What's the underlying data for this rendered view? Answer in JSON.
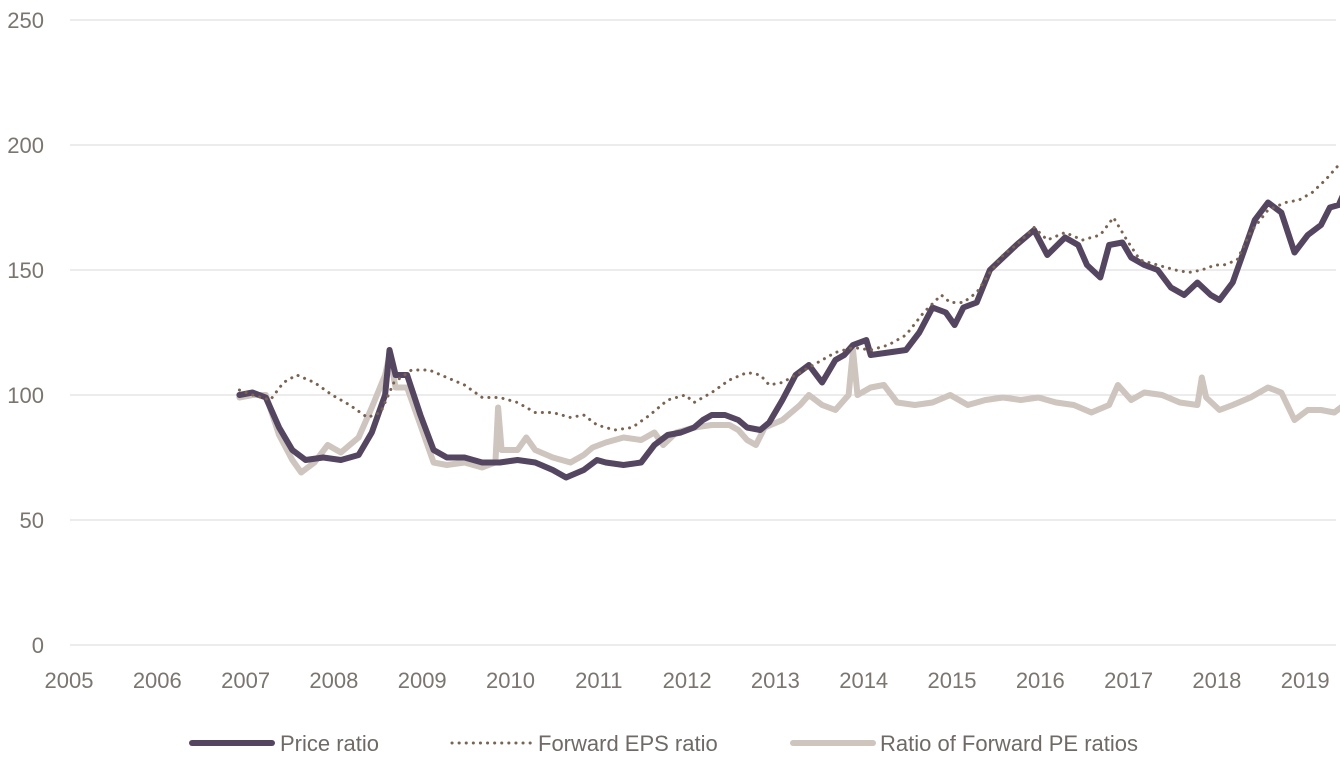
{
  "chart_data": {
    "type": "line",
    "title": "",
    "xlabel": "",
    "ylabel": "",
    "xlim": [
      2005,
      2019.4
    ],
    "ylim": [
      0,
      250
    ],
    "x_ticks": [
      "2005",
      "2006",
      "2007",
      "2008",
      "2009",
      "2010",
      "2011",
      "2012",
      "2013",
      "2014",
      "2015",
      "2016",
      "2017",
      "2018",
      "2019"
    ],
    "y_ticks": [
      "0",
      "50",
      "100",
      "150",
      "200",
      "250"
    ],
    "grid": "horizontal",
    "legend_position": "bottom",
    "series": [
      {
        "name": "Price ratio",
        "color": "#544660",
        "style": "solid-thick",
        "points": [
          [
            2006.85,
            100
          ],
          [
            2007.0,
            101
          ],
          [
            2007.15,
            99
          ],
          [
            2007.3,
            87
          ],
          [
            2007.45,
            78
          ],
          [
            2007.6,
            74
          ],
          [
            2007.8,
            75
          ],
          [
            2008.0,
            74
          ],
          [
            2008.2,
            76
          ],
          [
            2008.35,
            85
          ],
          [
            2008.5,
            100
          ],
          [
            2008.55,
            118
          ],
          [
            2008.62,
            108
          ],
          [
            2008.75,
            108
          ],
          [
            2008.9,
            92
          ],
          [
            2009.05,
            78
          ],
          [
            2009.2,
            75
          ],
          [
            2009.4,
            75
          ],
          [
            2009.6,
            73
          ],
          [
            2009.8,
            73
          ],
          [
            2010.0,
            74
          ],
          [
            2010.2,
            73
          ],
          [
            2010.4,
            70
          ],
          [
            2010.55,
            67
          ],
          [
            2010.75,
            70
          ],
          [
            2010.9,
            74
          ],
          [
            2011.0,
            73
          ],
          [
            2011.2,
            72
          ],
          [
            2011.4,
            73
          ],
          [
            2011.55,
            80
          ],
          [
            2011.7,
            84
          ],
          [
            2011.85,
            85
          ],
          [
            2012.0,
            87
          ],
          [
            2012.1,
            90
          ],
          [
            2012.2,
            92
          ],
          [
            2012.35,
            92
          ],
          [
            2012.5,
            90
          ],
          [
            2012.6,
            87
          ],
          [
            2012.75,
            86
          ],
          [
            2012.85,
            89
          ],
          [
            2013.0,
            98
          ],
          [
            2013.15,
            108
          ],
          [
            2013.3,
            112
          ],
          [
            2013.45,
            105
          ],
          [
            2013.6,
            114
          ],
          [
            2013.7,
            116
          ],
          [
            2013.8,
            120
          ],
          [
            2013.95,
            122
          ],
          [
            2014.0,
            116
          ],
          [
            2014.2,
            117
          ],
          [
            2014.4,
            118
          ],
          [
            2014.55,
            125
          ],
          [
            2014.7,
            135
          ],
          [
            2014.85,
            133
          ],
          [
            2014.95,
            128
          ],
          [
            2015.05,
            135
          ],
          [
            2015.2,
            137
          ],
          [
            2015.35,
            150
          ],
          [
            2015.5,
            155
          ],
          [
            2015.65,
            160
          ],
          [
            2015.85,
            166
          ],
          [
            2016.0,
            156
          ],
          [
            2016.2,
            163
          ],
          [
            2016.35,
            160
          ],
          [
            2016.45,
            152
          ],
          [
            2016.6,
            147
          ],
          [
            2016.7,
            160
          ],
          [
            2016.85,
            161
          ],
          [
            2016.95,
            155
          ],
          [
            2017.1,
            152
          ],
          [
            2017.25,
            150
          ],
          [
            2017.4,
            143
          ],
          [
            2017.55,
            140
          ],
          [
            2017.7,
            145
          ],
          [
            2017.85,
            140
          ],
          [
            2017.95,
            138
          ],
          [
            2018.1,
            145
          ],
          [
            2018.2,
            155
          ],
          [
            2018.35,
            170
          ],
          [
            2018.5,
            177
          ],
          [
            2018.65,
            173
          ],
          [
            2018.8,
            157
          ],
          [
            2018.95,
            164
          ],
          [
            2019.1,
            168
          ],
          [
            2019.2,
            175
          ],
          [
            2019.3,
            176
          ],
          [
            2019.4,
            184
          ]
        ]
      },
      {
        "name": "Forward EPS ratio",
        "color": "#7a6450",
        "style": "dotted",
        "points": [
          [
            2006.85,
            102
          ],
          [
            2007.0,
            100
          ],
          [
            2007.2,
            98
          ],
          [
            2007.35,
            105
          ],
          [
            2007.5,
            108
          ],
          [
            2007.7,
            105
          ],
          [
            2007.9,
            100
          ],
          [
            2008.1,
            96
          ],
          [
            2008.3,
            91
          ],
          [
            2008.45,
            93
          ],
          [
            2008.6,
            105
          ],
          [
            2008.8,
            110
          ],
          [
            2009.0,
            110
          ],
          [
            2009.2,
            107
          ],
          [
            2009.4,
            104
          ],
          [
            2009.6,
            99
          ],
          [
            2009.8,
            99
          ],
          [
            2010.0,
            97
          ],
          [
            2010.2,
            93
          ],
          [
            2010.4,
            93
          ],
          [
            2010.6,
            91
          ],
          [
            2010.75,
            92
          ],
          [
            2010.9,
            88
          ],
          [
            2011.1,
            86
          ],
          [
            2011.3,
            87
          ],
          [
            2011.5,
            92
          ],
          [
            2011.7,
            98
          ],
          [
            2011.9,
            100
          ],
          [
            2012.0,
            97
          ],
          [
            2012.2,
            101
          ],
          [
            2012.4,
            106
          ],
          [
            2012.6,
            109
          ],
          [
            2012.75,
            108
          ],
          [
            2012.85,
            104
          ],
          [
            2013.0,
            105
          ],
          [
            2013.2,
            109
          ],
          [
            2013.4,
            113
          ],
          [
            2013.6,
            117
          ],
          [
            2013.8,
            119
          ],
          [
            2014.0,
            118
          ],
          [
            2014.2,
            120
          ],
          [
            2014.4,
            124
          ],
          [
            2014.6,
            133
          ],
          [
            2014.8,
            140
          ],
          [
            2014.9,
            137
          ],
          [
            2015.05,
            137
          ],
          [
            2015.2,
            141
          ],
          [
            2015.35,
            149
          ],
          [
            2015.5,
            156
          ],
          [
            2015.65,
            160
          ],
          [
            2015.85,
            167
          ],
          [
            2016.0,
            162
          ],
          [
            2016.2,
            165
          ],
          [
            2016.4,
            162
          ],
          [
            2016.6,
            164
          ],
          [
            2016.75,
            171
          ],
          [
            2016.9,
            162
          ],
          [
            2017.05,
            154
          ],
          [
            2017.25,
            152
          ],
          [
            2017.45,
            150
          ],
          [
            2017.6,
            149
          ],
          [
            2017.75,
            150
          ],
          [
            2017.9,
            152
          ],
          [
            2018.0,
            152
          ],
          [
            2018.15,
            154
          ],
          [
            2018.3,
            165
          ],
          [
            2018.5,
            174
          ],
          [
            2018.7,
            177
          ],
          [
            2018.85,
            178
          ],
          [
            2019.0,
            181
          ],
          [
            2019.15,
            186
          ],
          [
            2019.3,
            192
          ],
          [
            2019.4,
            190
          ]
        ]
      },
      {
        "name": "Ratio of Forward PE ratios",
        "color": "#cdc5be",
        "style": "solid-thick",
        "points": [
          [
            2006.85,
            99
          ],
          [
            2007.0,
            100
          ],
          [
            2007.15,
            100
          ],
          [
            2007.3,
            84
          ],
          [
            2007.45,
            74
          ],
          [
            2007.55,
            69
          ],
          [
            2007.7,
            73
          ],
          [
            2007.85,
            80
          ],
          [
            2008.0,
            77
          ],
          [
            2008.2,
            83
          ],
          [
            2008.35,
            95
          ],
          [
            2008.5,
            108
          ],
          [
            2008.55,
            116
          ],
          [
            2008.62,
            103
          ],
          [
            2008.75,
            103
          ],
          [
            2008.9,
            88
          ],
          [
            2009.05,
            73
          ],
          [
            2009.2,
            72
          ],
          [
            2009.4,
            73
          ],
          [
            2009.6,
            71
          ],
          [
            2009.75,
            73
          ],
          [
            2009.78,
            95
          ],
          [
            2009.82,
            78
          ],
          [
            2010.0,
            78
          ],
          [
            2010.1,
            83
          ],
          [
            2010.2,
            78
          ],
          [
            2010.4,
            75
          ],
          [
            2010.6,
            73
          ],
          [
            2010.75,
            76
          ],
          [
            2010.85,
            79
          ],
          [
            2011.0,
            81
          ],
          [
            2011.2,
            83
          ],
          [
            2011.4,
            82
          ],
          [
            2011.55,
            85
          ],
          [
            2011.65,
            80
          ],
          [
            2011.8,
            85
          ],
          [
            2012.0,
            87
          ],
          [
            2012.2,
            88
          ],
          [
            2012.4,
            88
          ],
          [
            2012.5,
            86
          ],
          [
            2012.6,
            82
          ],
          [
            2012.7,
            80
          ],
          [
            2012.8,
            87
          ],
          [
            2013.0,
            90
          ],
          [
            2013.2,
            96
          ],
          [
            2013.3,
            100
          ],
          [
            2013.45,
            96
          ],
          [
            2013.6,
            94
          ],
          [
            2013.75,
            100
          ],
          [
            2013.8,
            118
          ],
          [
            2013.85,
            100
          ],
          [
            2014.0,
            103
          ],
          [
            2014.15,
            104
          ],
          [
            2014.3,
            97
          ],
          [
            2014.5,
            96
          ],
          [
            2014.7,
            97
          ],
          [
            2014.9,
            100
          ],
          [
            2015.1,
            96
          ],
          [
            2015.3,
            98
          ],
          [
            2015.5,
            99
          ],
          [
            2015.7,
            98
          ],
          [
            2015.9,
            99
          ],
          [
            2016.1,
            97
          ],
          [
            2016.3,
            96
          ],
          [
            2016.5,
            93
          ],
          [
            2016.7,
            96
          ],
          [
            2016.8,
            104
          ],
          [
            2016.95,
            98
          ],
          [
            2017.1,
            101
          ],
          [
            2017.3,
            100
          ],
          [
            2017.5,
            97
          ],
          [
            2017.7,
            96
          ],
          [
            2017.75,
            107
          ],
          [
            2017.8,
            99
          ],
          [
            2017.95,
            94
          ],
          [
            2018.1,
            96
          ],
          [
            2018.3,
            99
          ],
          [
            2018.5,
            103
          ],
          [
            2018.65,
            101
          ],
          [
            2018.8,
            90
          ],
          [
            2018.95,
            94
          ],
          [
            2019.1,
            94
          ],
          [
            2019.25,
            93
          ],
          [
            2019.4,
            97
          ]
        ]
      }
    ]
  }
}
